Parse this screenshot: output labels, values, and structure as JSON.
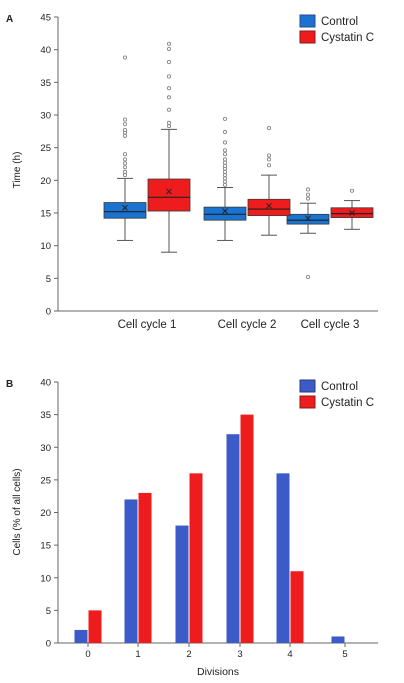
{
  "chart_data": [
    {
      "panel": "A",
      "type": "box",
      "ylabel": "Time (h)",
      "ylim": [
        0,
        45
      ],
      "yticks": [
        0,
        5,
        10,
        15,
        20,
        25,
        30,
        35,
        40,
        45
      ],
      "categories": [
        "Cell cycle 1",
        "Cell cycle 2",
        "Cell cycle 3"
      ],
      "legend": {
        "placement": "top-right"
      },
      "series": [
        {
          "name": "Control",
          "color": "#1a73d1",
          "boxes": [
            {
              "min": 10.8,
              "q1": 14.2,
              "median": 15.2,
              "q3": 16.6,
              "max": 20.3,
              "mean": 15.8,
              "outliers": [
                20.8,
                21.3,
                22.0,
                22.6,
                23.2,
                24.0,
                26.8,
                27.3,
                27.7,
                28.6,
                29.3,
                38.8
              ]
            },
            {
              "min": 10.8,
              "q1": 13.9,
              "median": 14.8,
              "q3": 15.9,
              "max": 18.9,
              "mean": 15.3,
              "outliers": [
                19.3,
                19.8,
                20.3,
                20.8,
                21.3,
                21.8,
                22.2,
                22.7,
                23.2,
                24.0,
                24.6,
                25.8,
                27.4,
                29.4
              ]
            },
            {
              "min": 11.9,
              "q1": 13.3,
              "median": 13.9,
              "q3": 14.8,
              "max": 16.5,
              "mean": 14.2,
              "outliers": [
                17.2,
                17.8,
                18.6,
                5.2
              ]
            }
          ]
        },
        {
          "name": "Cystatin C",
          "color": "#ee1c1c",
          "boxes": [
            {
              "min": 9.0,
              "q1": 15.3,
              "median": 17.4,
              "q3": 20.2,
              "max": 27.8,
              "mean": 18.3,
              "outliers": [
                28.3,
                28.8,
                30.8,
                32.7,
                34.1,
                35.9,
                38.1,
                40.1,
                40.9
              ]
            },
            {
              "min": 11.6,
              "q1": 14.6,
              "median": 15.6,
              "q3": 17.1,
              "max": 20.8,
              "mean": 16.1,
              "outliers": [
                22.3,
                23.2,
                23.8,
                28.0
              ]
            },
            {
              "min": 12.5,
              "q1": 14.3,
              "median": 14.9,
              "q3": 15.8,
              "max": 16.9,
              "mean": 15.0,
              "outliers": [
                18.4
              ]
            }
          ]
        }
      ]
    },
    {
      "panel": "B",
      "type": "bar",
      "ylabel": "Cells (% of all cells)",
      "xlabel": "Divisions",
      "ylim": [
        0,
        40
      ],
      "yticks": [
        0,
        5,
        10,
        15,
        20,
        25,
        30,
        35,
        40
      ],
      "categories": [
        "0",
        "1",
        "2",
        "3",
        "4",
        "5"
      ],
      "legend": {
        "placement": "top-right"
      },
      "series": [
        {
          "name": "Control",
          "color": "#3b5bc8",
          "values": [
            2,
            22,
            18,
            32,
            26,
            1
          ]
        },
        {
          "name": "Cystatin C",
          "color": "#ee1c1c",
          "values": [
            5,
            23,
            26,
            35,
            11,
            0
          ]
        }
      ]
    }
  ]
}
